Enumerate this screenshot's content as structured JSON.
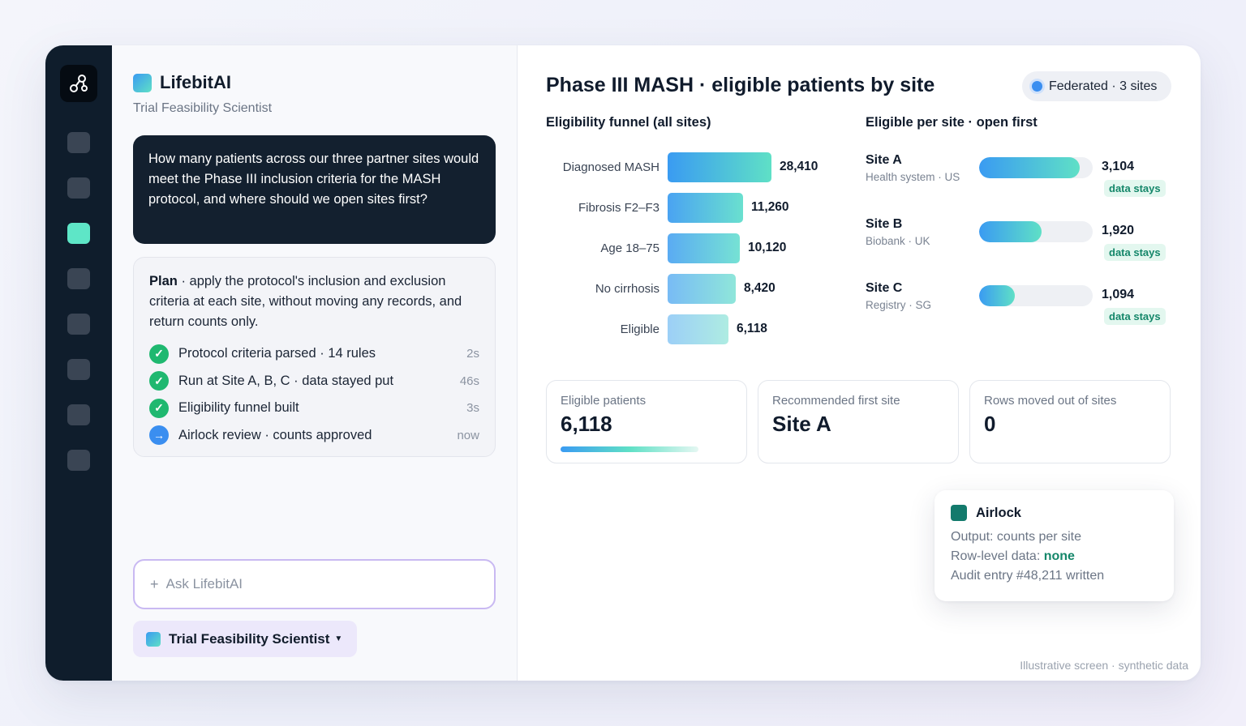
{
  "rail": {
    "logo_icon": "network-nodes-icon",
    "item_count": 8,
    "active_index": 2
  },
  "brand": {
    "name": "LifebitAI",
    "subtitle": "Trial Feasibility Scientist"
  },
  "chat": {
    "question": "How many patients across our three partner sites would meet the Phase III inclusion criteria for the MASH protocol, and where should we open sites first?",
    "plan_prefix": "Plan",
    "plan_text": " · apply the protocol's inclusion and exclusion criteria at each site, without moving any records, and return counts only.",
    "steps": [
      {
        "label": "Protocol criteria parsed · 14 rules",
        "time": "2s",
        "status": "done"
      },
      {
        "label": "Run at Site A, B, C · data stayed put",
        "time": "46s",
        "status": "done"
      },
      {
        "label": "Eligibility funnel built",
        "time": "3s",
        "status": "done"
      },
      {
        "label": "Airlock review · counts approved",
        "time": "now",
        "status": "current"
      }
    ],
    "ask_placeholder": "Ask LifebitAI",
    "ask_plus": "+",
    "agent_label": "Trial Feasibility Scientist"
  },
  "main": {
    "title": "Phase III MASH · eligible patients by site",
    "badge": "Federated · 3 sites",
    "funnel_title": "Eligibility funnel (all sites)",
    "sites_title": "Eligible per site · open first",
    "funnel": [
      {
        "label": "Diagnosed MASH",
        "value": 28410,
        "value_text": "28,410"
      },
      {
        "label": "Fibrosis F2–F3",
        "value": 11260,
        "value_text": "11,260"
      },
      {
        "label": "Age 18–75",
        "value": 10120,
        "value_text": "10,120"
      },
      {
        "label": "No cirrhosis",
        "value": 8420,
        "value_text": "8,420"
      },
      {
        "label": "Eligible",
        "value": 6118,
        "value_text": "6,118"
      }
    ],
    "sites": [
      {
        "name": "Site A",
        "meta": "Health system · US",
        "value": 3104,
        "value_text": "3,104",
        "tag": "data stays"
      },
      {
        "name": "Site B",
        "meta": "Biobank · UK",
        "value": 1920,
        "value_text": "1,920",
        "tag": "data stays"
      },
      {
        "name": "Site C",
        "meta": "Registry · SG",
        "value": 1094,
        "value_text": "1,094",
        "tag": "data stays"
      }
    ],
    "stats": [
      {
        "label": "Eligible patients",
        "value": "6,118"
      },
      {
        "label": "Recommended first site",
        "value": "Site A"
      },
      {
        "label": "Rows moved out of sites",
        "value": "0"
      }
    ],
    "airlock": {
      "title": "Airlock",
      "output": "Output: counts per site",
      "rowlevel_prefix": "Row-level data: ",
      "rowlevel_value": "none",
      "audit": "Audit entry #48,211 written"
    },
    "footnote": "Illustrative screen · synthetic data"
  },
  "colors": {
    "rail_bg": "#0f1d2c",
    "accent_teal": "#5ee6c7",
    "accent_blue": "#3a9bf2",
    "success": "#1fb870",
    "tag_green": "#15876a"
  }
}
